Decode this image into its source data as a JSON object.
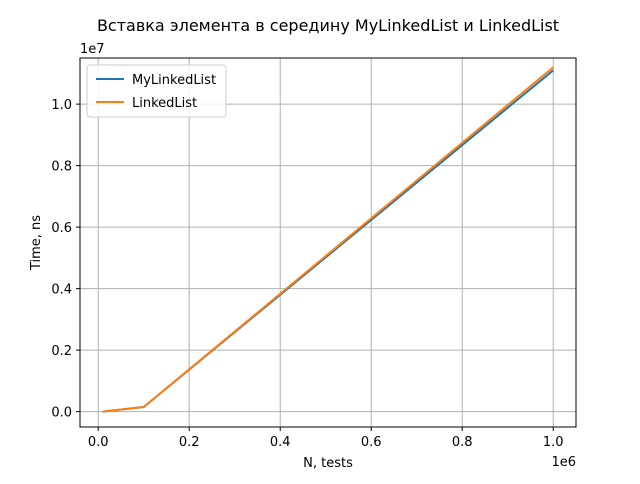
{
  "chart_data": {
    "type": "line",
    "title": "Вставка элемента в середину MyLinkedList и LinkedList",
    "xlabel": "N, tests",
    "ylabel": "Time, ns",
    "x_offset_label": "1e6",
    "y_offset_label": "1e7",
    "xlim": [
      -0.04,
      1.05
    ],
    "ylim": [
      -0.05,
      1.15
    ],
    "scale": {
      "x": 1000000,
      "y": 10000000
    },
    "xticks": [
      0.0,
      0.2,
      0.4,
      0.6,
      0.8,
      1.0
    ],
    "xtick_labels": [
      "0.0",
      "0.2",
      "0.4",
      "0.6",
      "0.8",
      "1.0"
    ],
    "yticks": [
      0.0,
      0.2,
      0.4,
      0.6,
      0.8,
      1.0
    ],
    "ytick_labels": [
      "0.0",
      "0.2",
      "0.4",
      "0.6",
      "0.8",
      "1.0"
    ],
    "grid": true,
    "legend_position": "top-left",
    "series": [
      {
        "name": "MyLinkedList",
        "color": "#1f77b4",
        "x": [
          0.01,
          0.1,
          1.0
        ],
        "y": [
          0.0,
          0.015,
          1.11
        ]
      },
      {
        "name": "LinkedList",
        "color": "#ff7f0e",
        "x": [
          0.01,
          0.1,
          1.0
        ],
        "y": [
          0.0,
          0.015,
          1.12
        ]
      }
    ]
  }
}
